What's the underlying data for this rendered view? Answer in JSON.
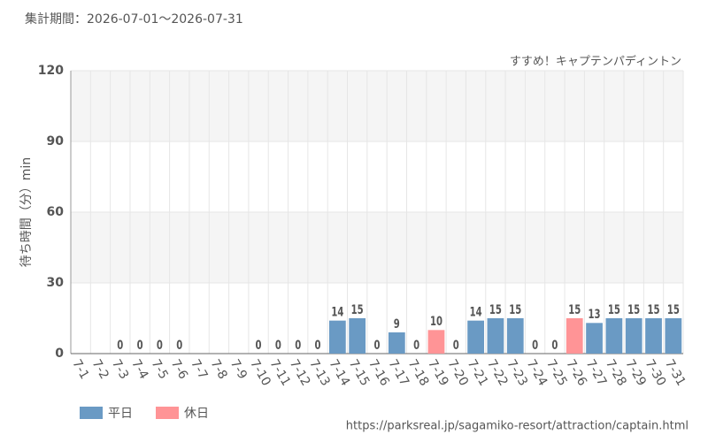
{
  "chart_data": {
    "type": "bar",
    "title": "集計期間：2026-07-01～2026-07-31",
    "subtitle": "すすめ！キャプテンパディントン",
    "y_label": "待ち時間（分）min",
    "source": "https://parksreal.jp/sagamiko-resort/attraction/captain.html",
    "categories": [
      "7-1",
      "7-2",
      "7-3",
      "7-4",
      "7-5",
      "7-6",
      "7-7",
      "7-8",
      "7-9",
      "7-10",
      "7-11",
      "7-12",
      "7-13",
      "7-14",
      "7-15",
      "7-16",
      "7-17",
      "7-18",
      "7-19",
      "7-20",
      "7-21",
      "7-22",
      "7-23",
      "7-24",
      "7-25",
      "7-26",
      "7-27",
      "7-28",
      "7-29",
      "7-30",
      "7-31"
    ],
    "series": [
      {
        "name": "平日",
        "color": "#6a9ac4",
        "values": [
          null,
          null,
          0,
          null,
          null,
          0,
          null,
          null,
          null,
          0,
          null,
          null,
          0,
          14,
          15,
          0,
          9,
          null,
          null,
          null,
          14,
          15,
          15,
          0,
          null,
          null,
          13,
          15,
          15,
          15,
          15
        ]
      },
      {
        "name": "休日",
        "color": "#ff9496",
        "values": [
          null,
          null,
          null,
          0,
          0,
          null,
          null,
          null,
          null,
          null,
          0,
          0,
          null,
          null,
          null,
          null,
          null,
          0,
          10,
          0,
          null,
          null,
          null,
          null,
          0,
          15,
          null,
          null,
          null,
          null,
          null
        ]
      }
    ],
    "ylim": [
      0,
      120
    ],
    "yticks": [
      0,
      30,
      60,
      90,
      120
    ],
    "grid": true
  }
}
